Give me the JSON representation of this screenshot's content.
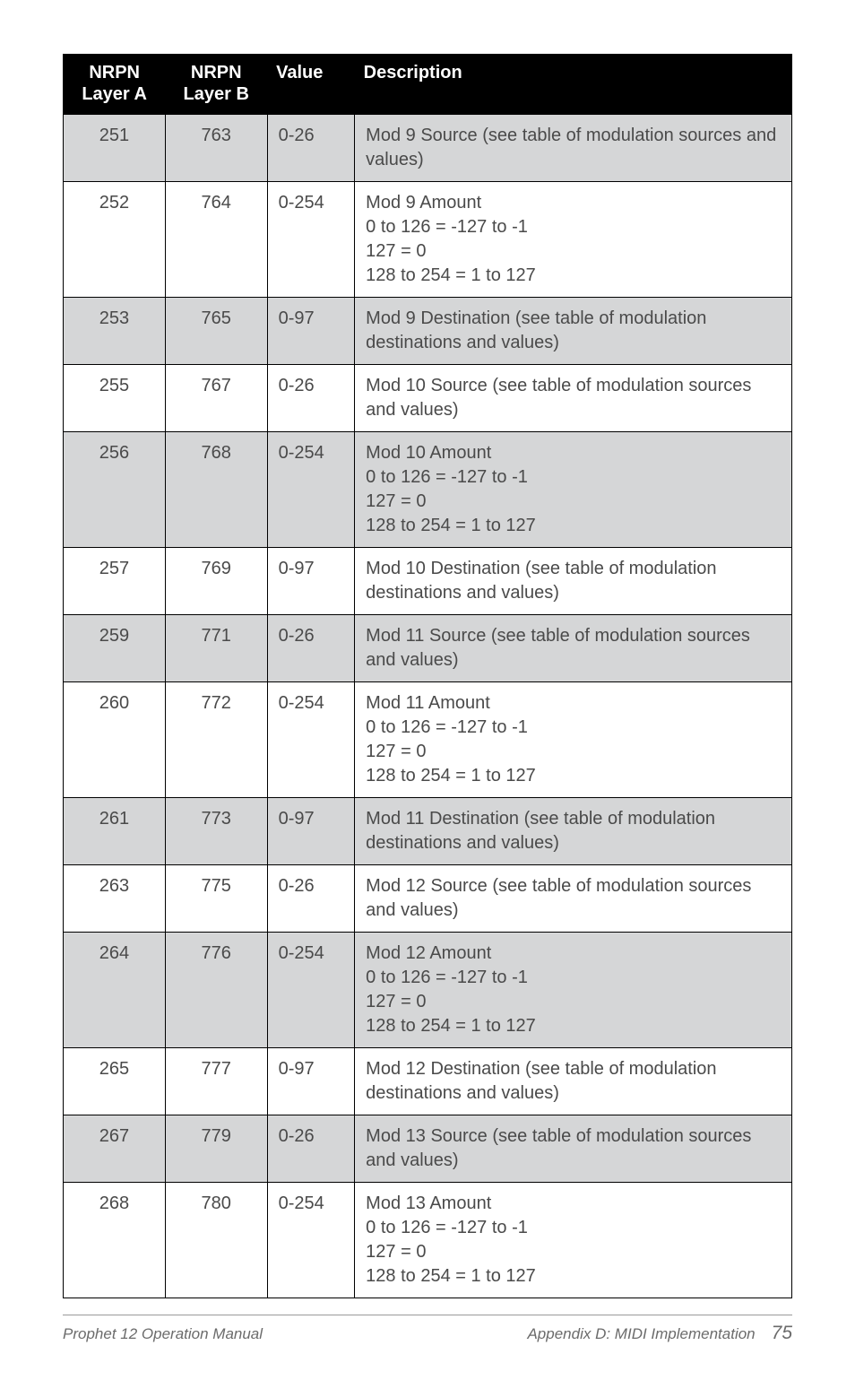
{
  "table": {
    "header": {
      "col1_line1": "NRPN",
      "col1_line2": "Layer A",
      "col2_line1": "NRPN",
      "col2_line2": "Layer B",
      "col3": "Value",
      "col4": "Description"
    },
    "rows": [
      {
        "shaded": true,
        "a": "251",
        "b": "763",
        "v": "0-26",
        "d": "Mod 9 Source (see table of modulation sources and values)"
      },
      {
        "shaded": false,
        "a": "252",
        "b": "764",
        "v": "0-254",
        "d": "Mod 9 Amount\n0 to 126 = -127 to -1\n127 = 0\n128 to 254 = 1 to 127"
      },
      {
        "shaded": true,
        "a": "253",
        "b": "765",
        "v": "0-97",
        "d": "Mod 9 Destination (see table of modulation destinations and values)"
      },
      {
        "shaded": false,
        "a": "255",
        "b": "767",
        "v": "0-26",
        "d": "Mod 10 Source (see table of modulation sources and values)"
      },
      {
        "shaded": true,
        "a": "256",
        "b": "768",
        "v": "0-254",
        "d": "Mod 10 Amount\n0 to 126 = -127 to -1\n127 = 0\n128 to 254 = 1 to 127"
      },
      {
        "shaded": false,
        "a": "257",
        "b": "769",
        "v": "0-97",
        "d": "Mod 10 Destination (see table of modulation destinations and values)"
      },
      {
        "shaded": true,
        "a": "259",
        "b": "771",
        "v": "0-26",
        "d": "Mod 11 Source (see table of modulation sources and values)"
      },
      {
        "shaded": false,
        "a": "260",
        "b": "772",
        "v": "0-254",
        "d": "Mod 11 Amount\n0 to 126 = -127 to -1\n127 = 0\n128 to 254 = 1 to 127"
      },
      {
        "shaded": true,
        "a": "261",
        "b": "773",
        "v": "0-97",
        "d": "Mod 11 Destination (see table of modulation destinations and values)"
      },
      {
        "shaded": false,
        "a": "263",
        "b": "775",
        "v": "0-26",
        "d": "Mod 12 Source (see table of modulation sources and values)"
      },
      {
        "shaded": true,
        "a": "264",
        "b": "776",
        "v": "0-254",
        "d": "Mod 12 Amount\n0 to 126 = -127 to -1\n127 = 0\n128 to 254 = 1 to 127"
      },
      {
        "shaded": false,
        "a": "265",
        "b": "777",
        "v": "0-97",
        "d": "Mod 12 Destination (see table of modulation destinations and values)"
      },
      {
        "shaded": true,
        "a": "267",
        "b": "779",
        "v": "0-26",
        "d": "Mod 13 Source (see table of modulation sources and values)"
      },
      {
        "shaded": false,
        "a": "268",
        "b": "780",
        "v": "0-254",
        "d": "Mod 13 Amount\n0 to 126 = -127 to -1\n127 = 0\n128 to 254 = 1 to 127"
      }
    ],
    "colors": {
      "header_bg": "#000000",
      "header_text": "#ffffff",
      "shaded_bg": "#d5d6d7",
      "body_text": "#4a4a4a",
      "border": "#000000"
    }
  },
  "footer": {
    "left": "Prophet 12 Operation Manual",
    "right_text": "Appendix D: MIDI Implementation",
    "page_number": "75"
  }
}
